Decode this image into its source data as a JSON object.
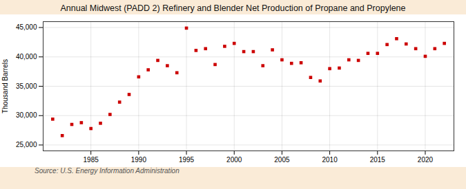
{
  "chart_data": {
    "type": "scatter",
    "title": "Annual Midwest (PADD 2) Refinery and Blender Net Production of Propane and Propylene",
    "ylabel": "Thousand Barrels",
    "source": "Source: U.S. Energy Information Administration",
    "x": [
      1981,
      1982,
      1983,
      1984,
      1985,
      1986,
      1987,
      1988,
      1989,
      1990,
      1991,
      1992,
      1993,
      1994,
      1995,
      1996,
      1997,
      1998,
      1999,
      2000,
      2001,
      2002,
      2003,
      2004,
      2005,
      2006,
      2007,
      2008,
      2009,
      2010,
      2011,
      2012,
      2013,
      2014,
      2015,
      2016,
      2017,
      2018,
      2019,
      2020,
      2021,
      2022
    ],
    "values": [
      29400,
      26600,
      28500,
      28800,
      27800,
      28700,
      30200,
      32300,
      33600,
      36600,
      37800,
      39400,
      38500,
      37300,
      44900,
      41100,
      41400,
      38700,
      41800,
      42300,
      40900,
      40900,
      38500,
      41200,
      39500,
      38900,
      39000,
      36500,
      35900,
      38000,
      38100,
      39500,
      39400,
      40600,
      40600,
      42100,
      43100,
      42200,
      41400,
      40100,
      41400,
      42300
    ],
    "color": "#cc0000",
    "marker": "square",
    "xlim": [
      1980,
      2023
    ],
    "xticks": [
      1985,
      1990,
      1995,
      2000,
      2005,
      2010,
      2015,
      2020
    ],
    "ylim": [
      24000,
      46000
    ],
    "yticks": [
      {
        "value": 25000,
        "label": "25,000"
      },
      {
        "value": 30000,
        "label": "30,000"
      },
      {
        "value": 35000,
        "label": "35,000"
      },
      {
        "value": 40000,
        "label": "40,000"
      },
      {
        "value": 45000,
        "label": "45,000"
      }
    ],
    "grid": true
  }
}
